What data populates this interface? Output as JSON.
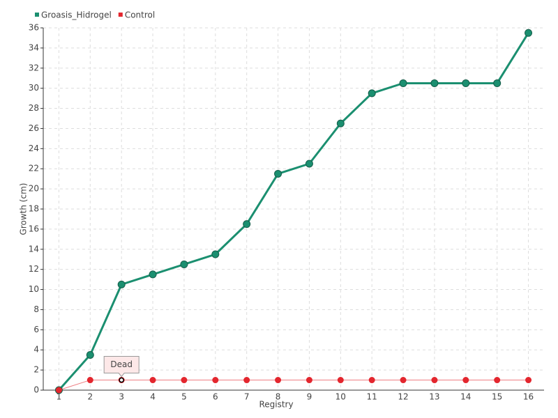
{
  "chart_data": {
    "type": "line",
    "x_label": "Registry",
    "y_label": "Growth (cm)",
    "categories": [
      "1",
      "2",
      "3",
      "4",
      "5",
      "6",
      "7",
      "8",
      "9",
      "10",
      "11",
      "12",
      "13",
      "14",
      "15",
      "16"
    ],
    "series": [
      {
        "name": "Groasis_Hidrogel",
        "color": "#1b8f70",
        "values": [
          0,
          3.5,
          10.5,
          11.5,
          12.5,
          13.5,
          16.5,
          21.5,
          22.5,
          26.5,
          29.5,
          30.5,
          30.5,
          30.5,
          30.5,
          35.5
        ]
      },
      {
        "name": "Control",
        "color": "#e3262e",
        "values": [
          0,
          1,
          1,
          1,
          1,
          1,
          1,
          1,
          1,
          1,
          1,
          1,
          1,
          1,
          1,
          1
        ]
      }
    ],
    "annotation": "Dead",
    "ylim": [
      0,
      36
    ],
    "yticks": [
      0,
      2,
      4,
      6,
      8,
      10,
      12,
      14,
      16,
      18,
      20,
      22,
      24,
      26,
      28,
      30,
      32,
      34,
      36
    ],
    "grid": true,
    "legend": "top-left"
  }
}
